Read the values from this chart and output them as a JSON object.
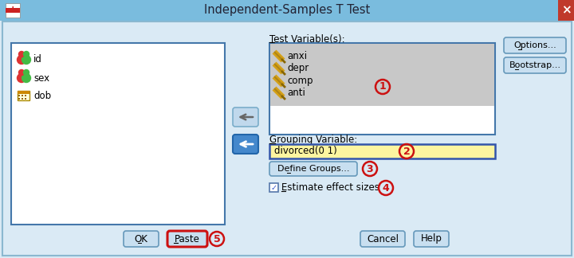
{
  "title": "Independent-Samples T Test",
  "bg_outer": "#aecde0",
  "bg_dialog": "#daeaf5",
  "title_bar_bg": "#6db3d8",
  "left_list_items": [
    "id",
    "sex",
    "dob"
  ],
  "test_vars_label": "Test Variable(s):",
  "test_vars": [
    "anxi",
    "depr",
    "comp",
    "anti"
  ],
  "grouping_var_label": "Grouping Variable:",
  "grouping_var_text": "divorced(0 1)",
  "grouping_var_bg": "#fdf5a0",
  "define_groups_btn": "Define Groups...",
  "estimate_label": "Estimate effect sizes",
  "buttons_bottom": [
    "OK",
    "Paste",
    "Cancel",
    "Help"
  ],
  "buttons_right": [
    "Options...",
    "Bootstrap..."
  ],
  "close_btn_color": "#c0392b",
  "circle_color": "#cc1111",
  "btn_fc": "#c8dff0",
  "btn_ec": "#6699bb",
  "list_ec": "#4477aa",
  "selected_bg": "#c8c8c8",
  "white": "#ffffff",
  "pencil_color": "#d4a017",
  "pencil_shadow": "#8b6914"
}
